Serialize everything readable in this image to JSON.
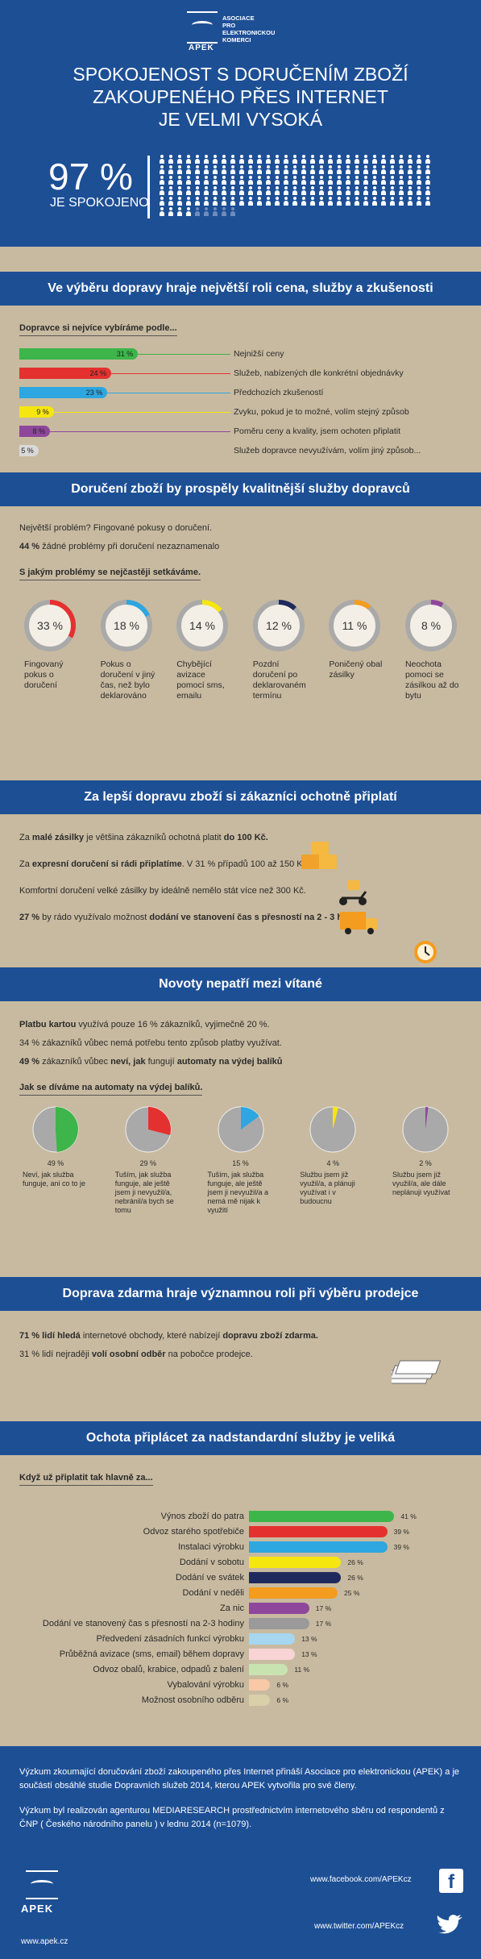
{
  "hero": {
    "logo_text": "APEK",
    "logo_full": [
      "ASOCIACE",
      "PRO",
      "ELEKTRONICKOU",
      "KOMERCI"
    ],
    "title_lines": [
      "SPOKOJENOST S DORUČENÍM ZBOŽÍ",
      "ZAKOUPENÉHO PŘES INTERNET",
      "JE VELMI VYSOKÁ"
    ],
    "percent": "97 %",
    "label": "JE SPOKOJENO",
    "satisfied_share": 0.97
  },
  "sec1": {
    "title": "Ve výběru dopravy hraje největší roli cena, služby a zkušenosti",
    "subtitle": "Dopravce si nejvíce vybíráme podle..."
  },
  "sec2": {
    "title": "Doručení zboží by prospěly kvalitnější služby dopravců",
    "line1": "Největší problém? Fingované pokusy o doručení.",
    "line2_pct": "44 %",
    "line2": " žádné problémy při doručení nezaznamenalo",
    "subtitle": "S jakým problémy se nejčastěji setkáváme."
  },
  "sec3": {
    "title": "Za lepší dopravu zboží si zákazníci ochotně připlatí",
    "r1a": "Za ",
    "r1b": "malé zásilky",
    "r1c": " je většina zákazníků ochotná platit ",
    "r1d": "do 100 Kč.",
    "r2a": "Za ",
    "r2b": "expresní doručení si rádi připlatíme",
    "r2c": ". V 31 % případů 100 až 150 Kč.",
    "r3": "Komfortní doručení velké zásilky by ideálně nemělo stát více než 300 Kč.",
    "r4a": "27 %",
    "r4b": " by rádo využívalo možnost ",
    "r4c": "dodání ve stanovení čas s přesností na 2 - 3 hodiny."
  },
  "sec4": {
    "title": "Novoty nepatří mezi vítané",
    "r1a": "Platbu kartou",
    "r1b": " využívá pouze 16 % zákazníků, vyjimečně 20 %.",
    "r2": "34 % zákazníků vůbec nemá potřebu tento způsob platby využívat.",
    "r3a": "49 %",
    "r3b": " zákazníků vůbec ",
    "r3c": "neví, jak",
    "r3d": " fungují ",
    "r3e": "automaty na výdej balíků",
    "subtitle": "Jak se díváme na automaty na výdej balíků."
  },
  "sec5": {
    "title": "Doprava zdarma hraje významnou roli při výběru prodejce",
    "r1a": "71 % lidí hledá",
    "r1b": " internetové obchody, které nabízejí ",
    "r1c": "dopravu zboží zdarma.",
    "r2a": "31 % lidí  nejraději ",
    "r2b": "volí osobní odběr",
    "r2c": " na pobočce prodejce."
  },
  "sec6": {
    "title": "Ochota připlácet za nadstandardní služby je veliká",
    "subtitle": "Když už připlatit tak hlavně za..."
  },
  "footer": {
    "p1": "Výzkum zkoumající doručování zboží zakoupeného přes Internet přináší Asociace pro elektronickou (APEK) a je součástí obsáhlé studie Dopravních služeb 2014, kterou APEK vytvořila pro své členy.",
    "p2": "Výzkum byl realizován agenturou MEDIARESEARCH prostřednictvím internetového sběru od respondentů z ČNP ( Českého národního panelu ) v lednu 2014 (n=1079).",
    "logo": "APEK",
    "website": "www.apek.cz",
    "facebook": "www.facebook.com/APEKcz",
    "twitter": "www.twitter.com/APEKcz",
    "facebook_icon": "facebook-icon",
    "twitter_icon": "twitter-icon"
  },
  "colors": {
    "blue": "#1d4f95",
    "bg": "#c8baa0"
  },
  "chart_data": [
    {
      "type": "bar",
      "title": "Dopravce si nejvíce vybíráme podle...",
      "categories": [
        "Nejnižší ceny",
        "Služeb, nabízených dle konkrétní objednávky",
        "Předchozích zkušeností",
        "Zvyku, pokud je to možné, volím stejný způsob",
        "Poměru ceny a kvality, jsem ochoten připlatit",
        "Služeb dopravce nevyužívám, volím jiný způsob..."
      ],
      "values": [
        31,
        24,
        23,
        9,
        8,
        5
      ],
      "labels": [
        "31 %",
        "24 %",
        "23 %",
        "9 %",
        "8 %",
        "5 %"
      ],
      "colors": [
        "#3db54a",
        "#e4312f",
        "#2ea6e0",
        "#f6e60f",
        "#8e479b",
        "#d9d9d9"
      ]
    },
    {
      "type": "pie",
      "title": "S jakým problémy se nejčastěji setkáváme.",
      "categories": [
        "Fingovaný pokus o doručení",
        "Pokus o doručení v jiný čas, než bylo deklarováno",
        "Chybějící avizace pomocí sms, emailu",
        "Pozdní doručení po deklarovaném termínu",
        "Poničený obal zásilky",
        "Neochota pomoci se zásilkou až do bytu"
      ],
      "values": [
        33,
        18,
        14,
        12,
        11,
        8
      ],
      "labels": [
        "33 %",
        "18 %",
        "14 %",
        "12 %",
        "11 %",
        "8 %"
      ],
      "colors": [
        "#e4312f",
        "#2ea6e0",
        "#f6e60f",
        "#1f2a5c",
        "#f39c1f",
        "#8e479b"
      ]
    },
    {
      "type": "pie",
      "title": "Jak se díváme na automaty na výdej balíků.",
      "categories": [
        "Neví, jak služba funguje, ani co to je",
        "Tuším, jak služba funguje, ale ještě jsem ji nevyužil/a, nebránil/a bych se tomu",
        "Tuším, jak služba funguje, ale ještě jsem ji nevyužil/a a nemá mě nijak k využití",
        "Službu jsem již využil/a, a plánuji využívat i v budoucnu",
        "Službu jsem již využil/a, ale dále neplánuji využívat"
      ],
      "values": [
        49,
        29,
        15,
        4,
        2
      ],
      "labels": [
        "49 %",
        "29 %",
        "15 %",
        "4 %",
        "2 %"
      ],
      "colors": [
        "#3db54a",
        "#e4312f",
        "#2ea6e0",
        "#f6e60f",
        "#8e479b"
      ]
    },
    {
      "type": "bar",
      "title": "Když už připlatit tak hlavně za...",
      "categories": [
        "Výnos zboží do patra",
        "Odvoz starého spotřebiče",
        "Instalaci výrobku",
        "Dodání v sobotu",
        "Dodání ve svátek",
        "Dodání v neděli",
        "Za nic",
        "Dodání ve stanovený čas s přesností na 2-3 hodiny",
        "Předvedení zásadních funkcí výrobku",
        "Průběžná avizace (sms, email) během dopravy",
        "Odvoz obalů, krabice, odpadů z balení",
        "Vybalování výrobku",
        "Možnost osobního odběru"
      ],
      "values": [
        41,
        39,
        39,
        26,
        26,
        25,
        17,
        17,
        13,
        13,
        11,
        6,
        6
      ],
      "labels": [
        "41 %",
        "39 %",
        "39 %",
        "26 %",
        "26 %",
        "25 %",
        "17 %",
        "17 %",
        "13 %",
        "13 %",
        "11 %",
        "6 %",
        "6 %"
      ],
      "colors": [
        "#3db54a",
        "#e4312f",
        "#2ea6e0",
        "#f6e60f",
        "#1f2a5c",
        "#f39c1f",
        "#8e479b",
        "#9a9a9a",
        "#a6d6f0",
        "#f8d4d6",
        "#c9e3b0",
        "#f7c9a6",
        "#d9cfa8"
      ]
    }
  ]
}
